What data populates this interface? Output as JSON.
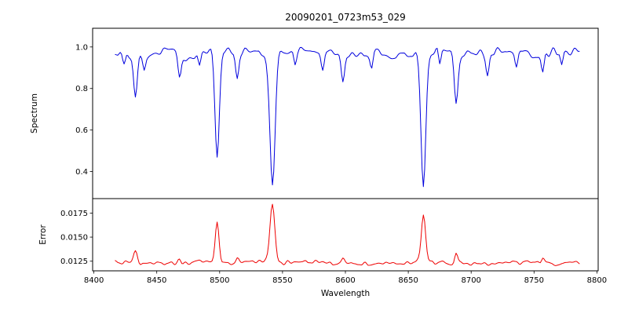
{
  "title": "20090201_0723m53_029",
  "xlabel": "Wavelength",
  "xlim": [
    8399,
    8801
  ],
  "xticks": [
    8400,
    8450,
    8500,
    8550,
    8600,
    8650,
    8700,
    8750,
    8800
  ],
  "xtick_labels": [
    "8400",
    "8450",
    "8500",
    "8550",
    "8600",
    "8650",
    "8700",
    "8750",
    "8800"
  ],
  "chart_data": [
    {
      "type": "line",
      "name": "spectrum",
      "ylabel": "Spectrum",
      "color": "#0000dd",
      "ylim": [
        0.27,
        1.09
      ],
      "yticks": [
        0.4,
        0.6,
        0.8,
        1.0
      ],
      "ytick_labels": [
        "0.4",
        "0.6",
        "0.8",
        "1.0"
      ],
      "x_range": [
        8417,
        8786
      ],
      "x_step": 1,
      "continuum": 0.97,
      "noise_amplitude": 0.08,
      "absorption_lines": [
        {
          "center": 8424,
          "depth": 0.06,
          "sigma": 1.2
        },
        {
          "center": 8433,
          "depth": 0.22,
          "sigma": 1.5
        },
        {
          "center": 8440,
          "depth": 0.06,
          "sigma": 1.0
        },
        {
          "center": 8468,
          "depth": 0.11,
          "sigma": 1.3
        },
        {
          "center": 8484,
          "depth": 0.06,
          "sigma": 1.0
        },
        {
          "center": 8498,
          "depth": 0.5,
          "sigma": 1.7
        },
        {
          "center": 8514,
          "depth": 0.11,
          "sigma": 1.2
        },
        {
          "center": 8542,
          "depth": 0.665,
          "sigma": 2.1
        },
        {
          "center": 8560,
          "depth": 0.06,
          "sigma": 1.0
        },
        {
          "center": 8582,
          "depth": 0.07,
          "sigma": 1.1
        },
        {
          "center": 8598,
          "depth": 0.13,
          "sigma": 1.3
        },
        {
          "center": 8621,
          "depth": 0.08,
          "sigma": 1.1
        },
        {
          "center": 8662,
          "depth": 0.635,
          "sigma": 1.9
        },
        {
          "center": 8675,
          "depth": 0.08,
          "sigma": 1.0
        },
        {
          "center": 8688,
          "depth": 0.235,
          "sigma": 1.4
        },
        {
          "center": 8713,
          "depth": 0.1,
          "sigma": 1.2
        },
        {
          "center": 8736,
          "depth": 0.07,
          "sigma": 1.1
        },
        {
          "center": 8757,
          "depth": 0.09,
          "sigma": 1.1
        },
        {
          "center": 8772,
          "depth": 0.07,
          "sigma": 1.0
        }
      ]
    },
    {
      "type": "line",
      "name": "error",
      "ylabel": "Error",
      "color": "#ee0000",
      "ylim": [
        0.0115,
        0.019
      ],
      "yticks": [
        0.0125,
        0.015,
        0.0175
      ],
      "ytick_labels": [
        "0.0125",
        "0.0150",
        "0.0175"
      ],
      "x_range": [
        8417,
        8786
      ],
      "x_step": 1,
      "baseline": 0.01235,
      "noise_amplitude": 0.0007,
      "peaks": [
        {
          "center": 8433,
          "height": 0.0013,
          "sigma": 1.6
        },
        {
          "center": 8468,
          "height": 0.0004,
          "sigma": 1.2
        },
        {
          "center": 8498,
          "height": 0.0041,
          "sigma": 1.5
        },
        {
          "center": 8514,
          "height": 0.0004,
          "sigma": 1.1
        },
        {
          "center": 8542,
          "height": 0.0062,
          "sigma": 1.9
        },
        {
          "center": 8598,
          "height": 0.0004,
          "sigma": 1.2
        },
        {
          "center": 8662,
          "height": 0.0049,
          "sigma": 1.7
        },
        {
          "center": 8688,
          "height": 0.0009,
          "sigma": 1.2
        },
        {
          "center": 8757,
          "height": 0.0005,
          "sigma": 1.1
        }
      ]
    }
  ]
}
